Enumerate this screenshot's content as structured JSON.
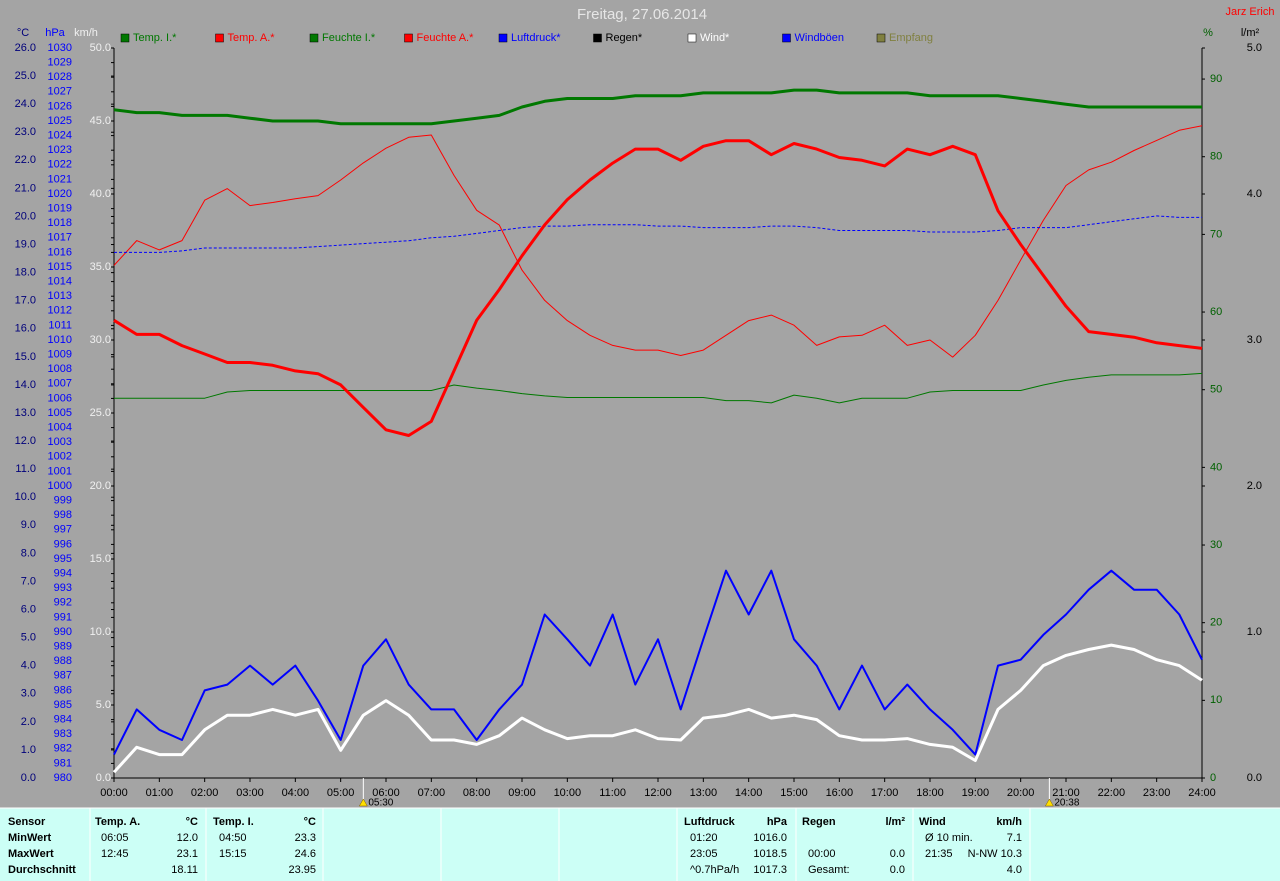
{
  "chart_data": {
    "type": "line",
    "title": "Freitag, 27.06.2014",
    "author": "Jarz Erich",
    "xlim": [
      0,
      24
    ],
    "xticks": [
      {
        "value": 0,
        "label": "00:00"
      },
      {
        "value": 1,
        "label": "01:00"
      },
      {
        "value": 2,
        "label": "02:00"
      },
      {
        "value": 3,
        "label": "03:00"
      },
      {
        "value": 4,
        "label": "04:00"
      },
      {
        "value": 5,
        "label": "05:00"
      },
      {
        "value": 6,
        "label": "06:00"
      },
      {
        "value": 7,
        "label": "07:00"
      },
      {
        "value": 8,
        "label": "08:00"
      },
      {
        "value": 9,
        "label": "09:00"
      },
      {
        "value": 10,
        "label": "10:00"
      },
      {
        "value": 11,
        "label": "11:00"
      },
      {
        "value": 12,
        "label": "12:00"
      },
      {
        "value": 13,
        "label": "13:00"
      },
      {
        "value": 14,
        "label": "14:00"
      },
      {
        "value": 15,
        "label": "15:00"
      },
      {
        "value": 16,
        "label": "16:00"
      },
      {
        "value": 17,
        "label": "17:00"
      },
      {
        "value": 18,
        "label": "18:00"
      },
      {
        "value": 19,
        "label": "19:00"
      },
      {
        "value": 20,
        "label": "20:00"
      },
      {
        "value": 21,
        "label": "21:00"
      },
      {
        "value": 22,
        "label": "22:00"
      },
      {
        "value": 23,
        "label": "23:00"
      },
      {
        "value": 24,
        "label": "24:00"
      }
    ],
    "annotations": [
      {
        "x": 5.5,
        "label": "05:30",
        "color": "#ffe000"
      },
      {
        "x": 20.633,
        "label": "20:38",
        "color": "#ffe000"
      }
    ],
    "axes": [
      {
        "label": "°C",
        "color": "#00007a",
        "lim": [
          0,
          26
        ],
        "ticks": [
          {
            "value": 0,
            "label": "0.0"
          },
          {
            "value": 1,
            "label": "1.0"
          },
          {
            "value": 2,
            "label": "2.0"
          },
          {
            "value": 3,
            "label": "3.0"
          },
          {
            "value": 4,
            "label": "4.0"
          },
          {
            "value": 5,
            "label": "5.0"
          },
          {
            "value": 6,
            "label": "6.0"
          },
          {
            "value": 7,
            "label": "7.0"
          },
          {
            "value": 8,
            "label": "8.0"
          },
          {
            "value": 9,
            "label": "9.0"
          },
          {
            "value": 10,
            "label": "10.0"
          },
          {
            "value": 11,
            "label": "11.0"
          },
          {
            "value": 12,
            "label": "12.0"
          },
          {
            "value": 13,
            "label": "13.0"
          },
          {
            "value": 14,
            "label": "14.0"
          },
          {
            "value": 15,
            "label": "15.0"
          },
          {
            "value": 16,
            "label": "16.0"
          },
          {
            "value": 17,
            "label": "17.0"
          },
          {
            "value": 18,
            "label": "18.0"
          },
          {
            "value": 19,
            "label": "19.0"
          },
          {
            "value": 20,
            "label": "20.0"
          },
          {
            "value": 21,
            "label": "21.0"
          },
          {
            "value": 22,
            "label": "22.0"
          },
          {
            "value": 23,
            "label": "23.0"
          },
          {
            "value": 24,
            "label": "24.0"
          },
          {
            "value": 25,
            "label": "25.0"
          },
          {
            "value": 26,
            "label": "26.0"
          }
        ]
      },
      {
        "label": "hPa",
        "color": "#0000ff",
        "lim": [
          980,
          1030
        ],
        "ticks": [
          980,
          981,
          982,
          983,
          984,
          985,
          986,
          987,
          988,
          989,
          990,
          991,
          992,
          993,
          994,
          995,
          996,
          997,
          998,
          999,
          1000,
          1001,
          1002,
          1003,
          1004,
          1005,
          1006,
          1007,
          1008,
          1009,
          1010,
          1011,
          1012,
          1013,
          1014,
          1015,
          1016,
          1017,
          1018,
          1019,
          1020,
          1021,
          1022,
          1023,
          1024,
          1025,
          1026,
          1027,
          1028,
          1029,
          1030
        ]
      },
      {
        "label": "km/h",
        "color": "#f0f0f0",
        "lim": [
          0,
          50
        ],
        "ticks": [
          {
            "value": 0,
            "label": "0.0"
          },
          {
            "value": 5,
            "label": "5.0"
          },
          {
            "value": 10,
            "label": "10.0"
          },
          {
            "value": 15,
            "label": "15.0"
          },
          {
            "value": 20,
            "label": "20.0"
          },
          {
            "value": 25,
            "label": "25.0"
          },
          {
            "value": 30,
            "label": "30.0"
          },
          {
            "value": 35,
            "label": "35.0"
          },
          {
            "value": 40,
            "label": "40.0"
          },
          {
            "value": 45,
            "label": "45.0"
          },
          {
            "value": 50,
            "label": "50.0"
          }
        ]
      },
      {
        "label": "%",
        "color": "#006000",
        "lim": [
          0,
          94
        ],
        "ticks": [
          0,
          10,
          20,
          30,
          40,
          50,
          60,
          70,
          80,
          90
        ]
      },
      {
        "label": "l/m²",
        "color": "#000000",
        "lim": [
          0,
          5
        ],
        "ticks": [
          {
            "value": 0,
            "label": "0.0"
          },
          {
            "value": 1,
            "label": "1.0"
          },
          {
            "value": 2,
            "label": "2.0"
          },
          {
            "value": 3,
            "label": "3.0"
          },
          {
            "value": 4,
            "label": "4.0"
          },
          {
            "value": 5,
            "label": "5.0"
          }
        ]
      }
    ],
    "x": [
      0,
      0.5,
      1,
      1.5,
      2,
      2.5,
      3,
      3.5,
      4,
      4.5,
      5,
      5.5,
      6,
      6.5,
      7,
      7.5,
      8,
      8.5,
      9,
      9.5,
      10,
      10.5,
      11,
      11.5,
      12,
      12.5,
      13,
      13.5,
      14,
      14.5,
      15,
      15.5,
      16,
      16.5,
      17,
      17.5,
      18,
      18.5,
      19,
      19.5,
      20,
      20.5,
      21,
      21.5,
      22,
      22.5,
      23,
      23.5,
      24
    ],
    "series": [
      {
        "name": "Temp. I.*",
        "color": "#007800",
        "axis": 0,
        "width": 3,
        "values": [
          23.8,
          23.7,
          23.7,
          23.6,
          23.6,
          23.6,
          23.5,
          23.4,
          23.4,
          23.4,
          23.3,
          23.3,
          23.3,
          23.3,
          23.3,
          23.4,
          23.5,
          23.6,
          23.9,
          24.1,
          24.2,
          24.2,
          24.2,
          24.3,
          24.3,
          24.3,
          24.4,
          24.4,
          24.4,
          24.4,
          24.5,
          24.5,
          24.4,
          24.4,
          24.4,
          24.4,
          24.3,
          24.3,
          24.3,
          24.3,
          24.2,
          24.1,
          24.0,
          23.9,
          23.9,
          23.9,
          23.9,
          23.9,
          23.9
        ]
      },
      {
        "name": "Temp. A.*",
        "color": "#ff0000",
        "axis": 0,
        "width": 3,
        "values": [
          16.3,
          15.8,
          15.8,
          15.4,
          15.1,
          14.8,
          14.8,
          14.7,
          14.5,
          14.4,
          14.0,
          13.2,
          12.4,
          12.2,
          12.7,
          14.5,
          16.3,
          17.4,
          18.6,
          19.7,
          20.6,
          21.3,
          21.9,
          22.4,
          22.4,
          22.0,
          22.5,
          22.7,
          22.7,
          22.2,
          22.6,
          22.4,
          22.1,
          22.0,
          21.8,
          22.4,
          22.2,
          22.5,
          22.2,
          20.2,
          19.0,
          17.9,
          16.8,
          15.9,
          15.8,
          15.7,
          15.5,
          15.4,
          15.3
        ]
      },
      {
        "name": "Feuchte I.*",
        "color": "#007800",
        "axis": 3,
        "width": 1,
        "values": [
          48.9,
          48.9,
          48.9,
          48.9,
          48.9,
          49.7,
          49.9,
          49.9,
          49.9,
          49.9,
          49.9,
          49.9,
          49.9,
          49.9,
          49.9,
          50.6,
          50.2,
          49.9,
          49.5,
          49.2,
          49.0,
          49.0,
          49.0,
          49.0,
          49.0,
          49.0,
          49.0,
          48.6,
          48.6,
          48.3,
          49.3,
          48.9,
          48.3,
          48.9,
          48.9,
          48.9,
          49.7,
          49.9,
          49.9,
          49.9,
          49.9,
          50.6,
          51.2,
          51.6,
          51.9,
          51.9,
          51.9,
          51.9,
          52.1
        ]
      },
      {
        "name": "Feuchte A.*",
        "color": "#ff0000",
        "axis": 3,
        "width": 1,
        "values": [
          66.0,
          69.2,
          68.0,
          69.2,
          74.4,
          75.9,
          73.7,
          74.1,
          74.6,
          75.0,
          77.0,
          79.2,
          81.1,
          82.5,
          82.8,
          77.6,
          73.1,
          71.2,
          65.4,
          61.5,
          58.9,
          57.0,
          55.7,
          55.1,
          55.1,
          54.4,
          55.1,
          57.0,
          58.9,
          59.6,
          58.3,
          55.7,
          56.8,
          57.0,
          58.3,
          55.7,
          56.4,
          54.2,
          57.0,
          61.5,
          66.7,
          71.8,
          76.3,
          78.3,
          79.3,
          80.8,
          82.1,
          83.4,
          84.0
        ]
      },
      {
        "name": "Luftdruck*",
        "color": "#0000ff",
        "axis": 1,
        "width": 1,
        "dash": "3 2",
        "values": [
          1016.0,
          1016.0,
          1016.0,
          1016.1,
          1016.3,
          1016.3,
          1016.3,
          1016.3,
          1016.3,
          1016.4,
          1016.5,
          1016.6,
          1016.7,
          1016.8,
          1017.0,
          1017.1,
          1017.3,
          1017.5,
          1017.7,
          1017.8,
          1017.8,
          1017.9,
          1017.9,
          1017.9,
          1017.8,
          1017.8,
          1017.7,
          1017.7,
          1017.7,
          1017.8,
          1017.8,
          1017.7,
          1017.5,
          1017.5,
          1017.5,
          1017.5,
          1017.4,
          1017.4,
          1017.4,
          1017.5,
          1017.7,
          1017.7,
          1017.7,
          1017.9,
          1018.1,
          1018.3,
          1018.5,
          1018.4,
          1018.4
        ]
      },
      {
        "name": "Regen*",
        "color": "#000000"
      },
      {
        "name": "Wind*",
        "color": "#ffffff",
        "axis": 2,
        "width": 3,
        "values": [
          0.4,
          2.1,
          1.6,
          1.6,
          3.3,
          4.3,
          4.3,
          4.7,
          4.3,
          4.7,
          1.9,
          4.3,
          5.3,
          4.3,
          2.6,
          2.6,
          2.3,
          2.9,
          4.1,
          3.3,
          2.7,
          2.9,
          2.9,
          3.3,
          2.7,
          2.6,
          4.1,
          4.3,
          4.7,
          4.1,
          4.3,
          4.0,
          2.9,
          2.6,
          2.6,
          2.7,
          2.3,
          2.1,
          1.2,
          4.7,
          6.0,
          7.7,
          8.4,
          8.8,
          9.1,
          8.8,
          8.1,
          7.7,
          6.7
        ]
      },
      {
        "name": "Windböen",
        "color": "#0000ff",
        "axis": 2,
        "width": 2,
        "values": [
          1.6,
          4.7,
          3.3,
          2.6,
          6.0,
          6.4,
          7.7,
          6.4,
          7.7,
          5.3,
          2.6,
          7.7,
          9.5,
          6.4,
          4.7,
          4.7,
          2.6,
          4.7,
          6.4,
          11.2,
          9.5,
          7.7,
          11.2,
          6.4,
          9.5,
          4.7,
          9.5,
          14.2,
          11.2,
          14.2,
          9.5,
          7.7,
          4.7,
          7.7,
          4.7,
          6.4,
          4.7,
          3.3,
          1.6,
          7.7,
          8.1,
          9.8,
          11.2,
          12.9,
          14.2,
          12.9,
          12.9,
          11.2,
          8.1
        ]
      },
      {
        "name": "Empfang",
        "color": "#808040"
      }
    ]
  },
  "table": {
    "row_labels": [
      "Sensor",
      "MinWert",
      "MaxWert",
      "Durchschnitt"
    ],
    "groups": [
      {
        "title": "Temp. A.",
        "unit": "°C",
        "rows": [
          [
            "06:05",
            "12.0"
          ],
          [
            "12:45",
            "23.1"
          ],
          [
            null,
            "18.11"
          ]
        ]
      },
      {
        "title": "Temp. I.",
        "unit": "°C",
        "rows": [
          [
            "04:50",
            "23.3"
          ],
          [
            "15:15",
            "24.6"
          ],
          [
            null,
            "23.95"
          ]
        ]
      },
      {
        "title": "Luftdruck",
        "unit": "hPa",
        "rows": [
          [
            "01:20",
            "1016.0"
          ],
          [
            "23:05",
            "1018.5"
          ],
          [
            "^0.7hPa/h",
            "1017.3"
          ]
        ]
      },
      {
        "title": "Regen",
        "unit": "l/m²",
        "rows": [
          [
            null,
            null
          ],
          [
            "00:00",
            "0.0"
          ],
          [
            "Gesamt:",
            "0.0"
          ]
        ]
      },
      {
        "title": "Wind",
        "unit": "km/h",
        "rows": [
          [
            "Ø 10 min.",
            "7.1"
          ],
          [
            "21:35",
            "N-NW 10.3"
          ],
          [
            null,
            "4.0"
          ]
        ]
      }
    ]
  }
}
